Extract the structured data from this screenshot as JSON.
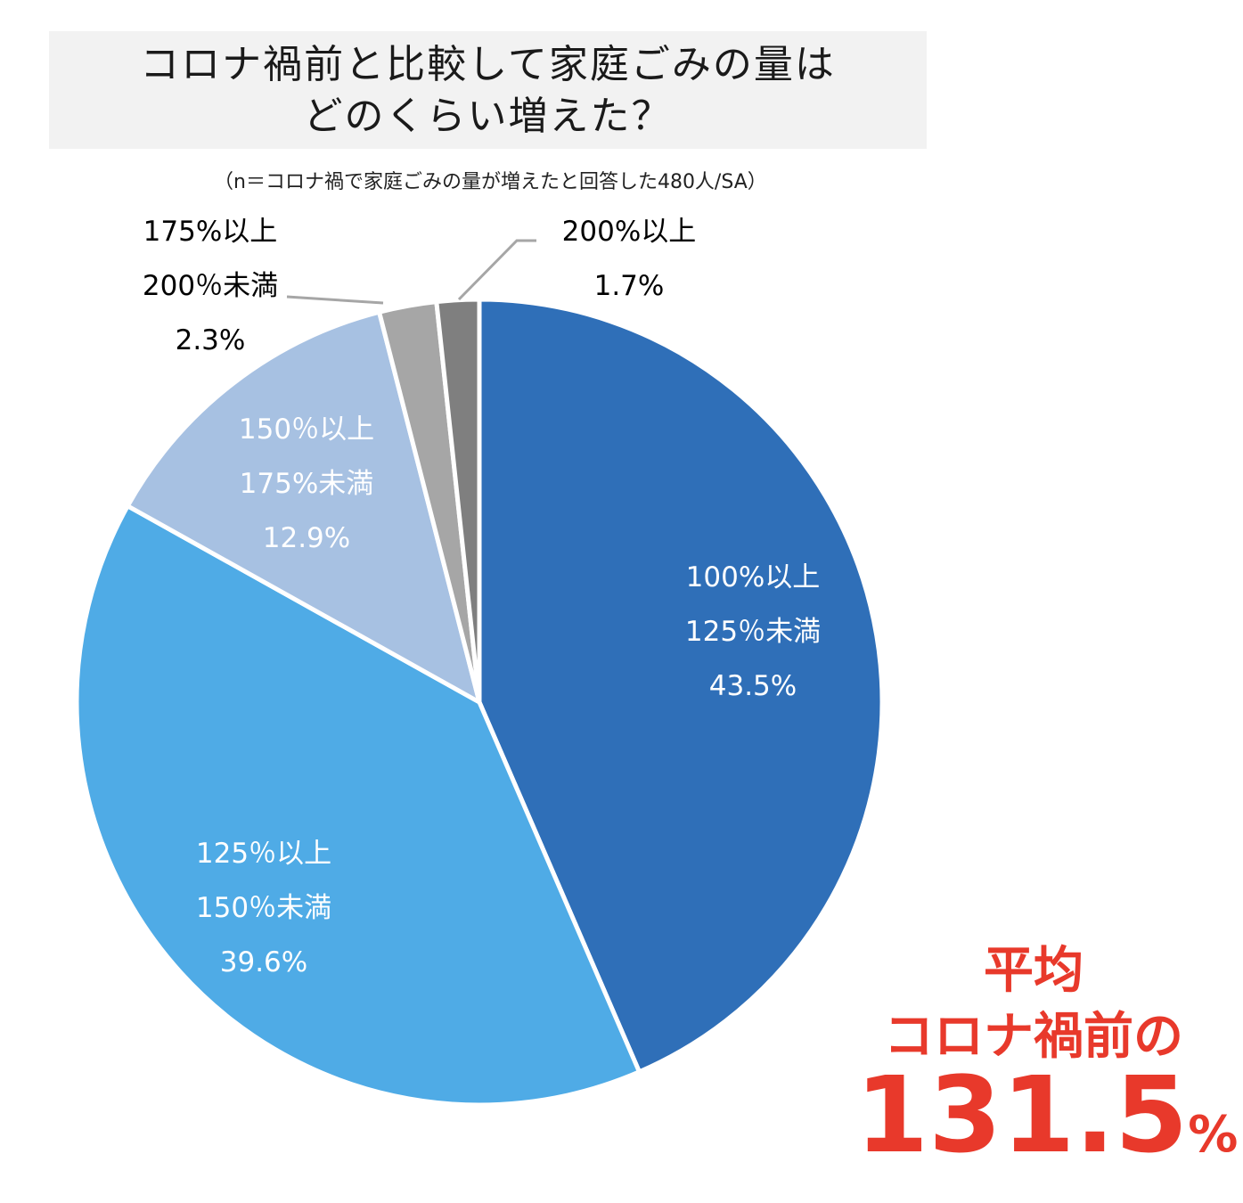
{
  "title": {
    "line1": "コロナ禍前と比較して家庭ごみの量は",
    "line2": "どのくらい増えた？"
  },
  "subtitle": "（n＝コロナ禍で家庭ごみの量が増えたと回答した480人/SA）",
  "chart_data": {
    "type": "pie",
    "slices": [
      {
        "label_lines": [
          "100%以上",
          "125％未満"
        ],
        "value": 43.5,
        "value_text": "43.5%",
        "color": "#2f6fb8",
        "text_color": "#ffffff"
      },
      {
        "label_lines": [
          "125％以上",
          "150％未満"
        ],
        "value": 39.6,
        "value_text": "39.6%",
        "color": "#4fabe6",
        "text_color": "#ffffff"
      },
      {
        "label_lines": [
          "150％以上",
          "175%未満"
        ],
        "value": 12.9,
        "value_text": "12.9%",
        "color": "#a7c1e2",
        "text_color": "#ffffff"
      },
      {
        "label_lines": [
          "175%以上",
          "200％未満"
        ],
        "value": 2.3,
        "value_text": "2.3%",
        "color": "#a6a6a6",
        "text_color": "#000000"
      },
      {
        "label_lines": [
          "200%以上"
        ],
        "value": 1.7,
        "value_text": "1.7%",
        "color": "#7f7f7f",
        "text_color": "#000000"
      }
    ]
  },
  "average": {
    "line1": "平均",
    "line2": "コロナ禍前の",
    "value": "131.5",
    "unit": "%",
    "color": "#e8392b"
  }
}
